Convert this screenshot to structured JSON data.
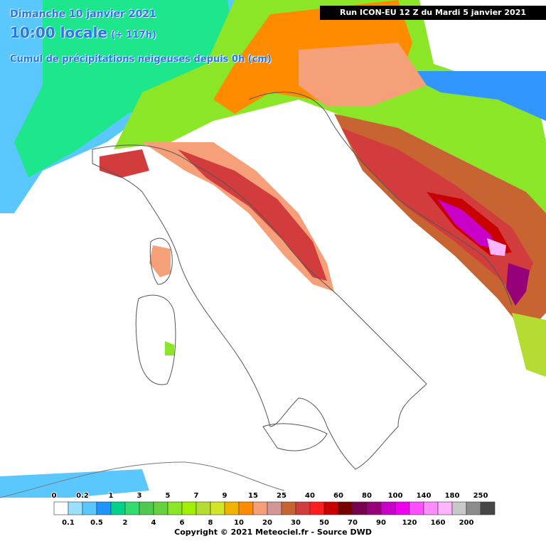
{
  "header": {
    "date": "Dimanche 10 janvier 2021",
    "time": "10:00 locale",
    "lead": "(+ 117h)",
    "subtitle": "Cumul de précipitations neigeuses depuis 0h (cm)",
    "run": "Run ICON-EU 12 Z du Mardi 5 janvier 2021"
  },
  "legend": {
    "thresholds": [
      0,
      0.1,
      0.2,
      0.5,
      1,
      2,
      3,
      4,
      5,
      6,
      7,
      8,
      9,
      10,
      15,
      20,
      25,
      30,
      40,
      50,
      60,
      70,
      80,
      90,
      100,
      120,
      140,
      160,
      180,
      200,
      250
    ],
    "colors": [
      "#ffffff",
      "#9be1ff",
      "#5ac8ff",
      "#1e96ff",
      "#00d28c",
      "#32dc6e",
      "#50c850",
      "#64d23c",
      "#8ce628",
      "#a0f000",
      "#b4dc32",
      "#d2e628",
      "#f0b400",
      "#ff8c00",
      "#f5a078",
      "#d29696",
      "#c86432",
      "#d23c3c",
      "#ff1e1e",
      "#c80000",
      "#780000",
      "#780050",
      "#960078",
      "#c800c8",
      "#f000f0",
      "#ff50ff",
      "#ff8cff",
      "#ffb4ff",
      "#c8c8c8",
      "#8c8c8c",
      "#464646"
    ]
  },
  "footer": {
    "copyright": "Copyright © 2021 Meteociel.fr - Source DWD"
  }
}
